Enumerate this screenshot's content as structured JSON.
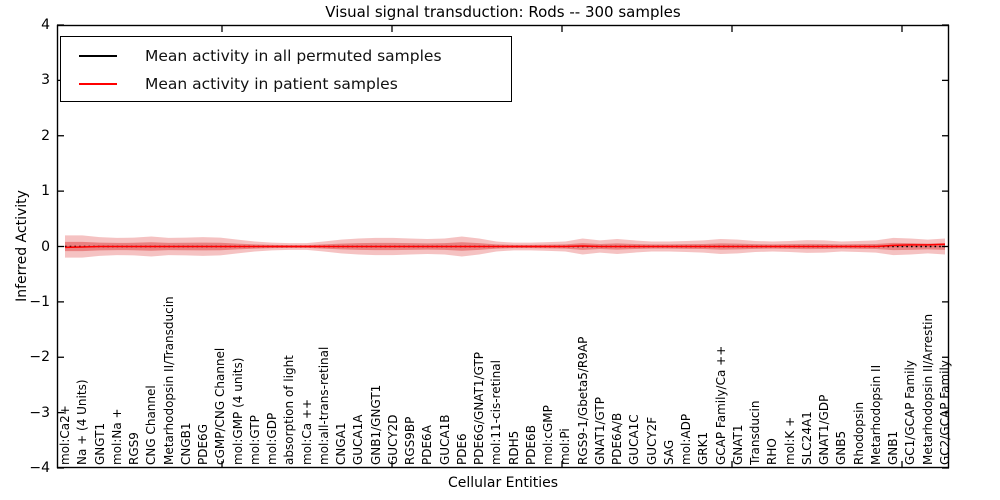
{
  "title": "Visual signal transduction: Rods -- 300 samples",
  "legend": {
    "items": [
      {
        "label": "Mean activity in all permuted samples",
        "color": "#000000"
      },
      {
        "label": "Mean activity in patient samples",
        "color": "#ff0000"
      }
    ]
  },
  "chart_data": {
    "type": "area",
    "title": "Visual signal transduction: Rods -- 300 samples",
    "xlabel": "Cellular Entities",
    "ylabel": "Inferred Activity",
    "ylim": [
      -4,
      4
    ],
    "ytick_labels": [
      "4",
      "3",
      "2",
      "1",
      "0",
      "−1",
      "−2",
      "−3",
      "−4"
    ],
    "ytick_values": [
      4,
      3,
      2,
      1,
      0,
      -1,
      -2,
      -3,
      -4
    ],
    "grid": false,
    "legend_position": "upper left",
    "band_color": "#e04040",
    "permuted_line_color": "#000000",
    "patient_line_color": "#ff0000",
    "categories": [
      "mol:Ca2+",
      "Na + (4 Units)",
      "GNGT1",
      "mol:Na +",
      "RGS9",
      "CNG Channel",
      "Metarhodopsin II/Transducin",
      "CNGB1",
      "PDE6G",
      "cGMP/CNG Channel",
      "mol:GMP (4 units)",
      "mol:GTP",
      "mol:GDP",
      "absorption of light",
      "mol:Ca ++",
      "mol:all-trans-retinal",
      "CNGA1",
      "GUCA1A",
      "GNB1/GNGT1",
      "GUCY2D",
      "RGS9BP",
      "PDE6A",
      "GUCA1B",
      "PDE6",
      "PDE6G/GNAT1/GTP",
      "mol:11-cis-retinal",
      "RDH5",
      "PDE6B",
      "mol:cGMP",
      "mol:Pi",
      "RGS9-1/Gbeta5/R9AP",
      "GNAT1/GTP",
      "PDE6A/B",
      "GUCA1C",
      "GUCY2F",
      "SAG",
      "mol:ADP",
      "GRK1",
      "GCAP Family/Ca ++",
      "GNAT1",
      "Transducin",
      "RHO",
      "mol:K +",
      "SLC24A1",
      "GNAT1/GDP",
      "GNB5",
      "Rhodopsin",
      "Metarhodopsin II",
      "GNB1",
      "GC1/GCAP Family",
      "Metarhodopsin II/Arrestin",
      "GC2/GCAP Family"
    ],
    "series": [
      {
        "name": "Mean activity in all permuted samples",
        "values": [
          0,
          0,
          0,
          0,
          0,
          0,
          0,
          0,
          0,
          0,
          0,
          0,
          0,
          0,
          0,
          0,
          0,
          0,
          0,
          0,
          0,
          0,
          0,
          0,
          0,
          0,
          0,
          0,
          0,
          0,
          0,
          0,
          0,
          0,
          0,
          0,
          0,
          0,
          0,
          0,
          0,
          0,
          0,
          0,
          0,
          0,
          0,
          0,
          0,
          0,
          0,
          0
        ]
      },
      {
        "name": "Mean activity in patient samples",
        "values": [
          -0.015,
          -0.01,
          0,
          0,
          0,
          0,
          0,
          0,
          0,
          0,
          0,
          0,
          0,
          0,
          0,
          0,
          0,
          0,
          0,
          0,
          0,
          0,
          0,
          0,
          0,
          0,
          0,
          0,
          0,
          0,
          0.01,
          0,
          0,
          0,
          0,
          0,
          0,
          0,
          0,
          0,
          0,
          0,
          0,
          0,
          0,
          0,
          0,
          0,
          0.02,
          0.03,
          0.03,
          0.04
        ]
      }
    ],
    "band_outer_halfwidth": [
      0.2,
      0.2,
      0.17,
      0.155,
      0.16,
      0.18,
      0.155,
      0.16,
      0.17,
      0.16,
      0.125,
      0.09,
      0.07,
      0.06,
      0.06,
      0.09,
      0.125,
      0.145,
      0.155,
      0.155,
      0.145,
      0.135,
      0.145,
      0.18,
      0.145,
      0.09,
      0.07,
      0.07,
      0.08,
      0.09,
      0.145,
      0.11,
      0.135,
      0.11,
      0.09,
      0.09,
      0.1,
      0.11,
      0.135,
      0.125,
      0.1,
      0.09,
      0.1,
      0.115,
      0.11,
      0.09,
      0.1,
      0.11,
      0.155,
      0.145,
      0.125,
      0.145
    ],
    "band_inner_halfwidth": [
      0.084,
      0.084,
      0.071,
      0.065,
      0.067,
      0.076,
      0.065,
      0.067,
      0.071,
      0.067,
      0.053,
      0.038,
      0.029,
      0.025,
      0.025,
      0.038,
      0.053,
      0.061,
      0.065,
      0.065,
      0.061,
      0.057,
      0.061,
      0.076,
      0.061,
      0.038,
      0.029,
      0.029,
      0.034,
      0.038,
      0.061,
      0.046,
      0.057,
      0.046,
      0.038,
      0.038,
      0.042,
      0.046,
      0.057,
      0.053,
      0.042,
      0.038,
      0.042,
      0.048,
      0.046,
      0.038,
      0.042,
      0.046,
      0.065,
      0.061,
      0.053,
      0.061
    ]
  }
}
